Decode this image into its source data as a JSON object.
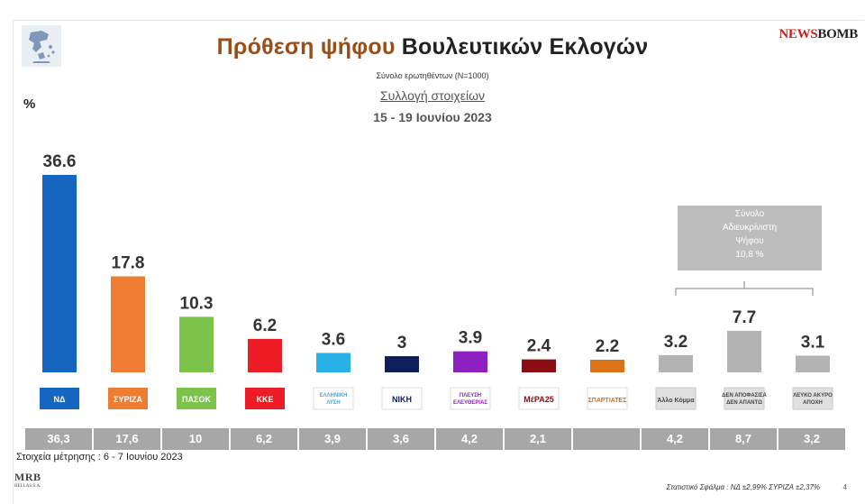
{
  "header": {
    "title_accent": "Πρόθεση ψήφου",
    "title_rest": "Βουλευτικών Εκλογών",
    "brand_left": "NEWS",
    "brand_right": "BOMB",
    "subtitle": "Σύνολο ερωτηθέντων (Ν=1000)",
    "collection_label": "Συλλογή στοιχείων",
    "date_range": "15 - 19 Ιουνίου 2023"
  },
  "chart_data": {
    "type": "bar",
    "ylabel": "%",
    "categories": [
      {
        "logo_text": "ΝΔ",
        "color": "#1665c0"
      },
      {
        "logo_text": "ΣΥΡΙΖΑ",
        "color": "#ef7d31"
      },
      {
        "logo_text": "ΠΑΣΟΚ",
        "color": "#7dc24a"
      },
      {
        "logo_text": "ΚΚΕ",
        "color": "#ee1c24"
      },
      {
        "logo_text": "ΕΛΛΗΝΙΚΗ ΛΥΣΗ",
        "color": "#29b1e6"
      },
      {
        "logo_text": "ΝΙΚΗ",
        "color": "#0e1f5c"
      },
      {
        "logo_text": "ΠΛΕΥΣΗ ΕΛΕΥΘΕΡΙΑΣ",
        "color": "#8b1fbf"
      },
      {
        "logo_text": "ΜέΡΑ25",
        "color": "#8b0d12"
      },
      {
        "logo_text": "ΣΠΑΡΤΙΑΤΕΣ",
        "color": "#dc7319"
      },
      {
        "logo_text": "Άλλο Κόμμα",
        "color": "#b3b3b3"
      },
      {
        "logo_text": "ΔΕΝ ΑΠΟΦΑΣΙΣΑ ΔΕΝ ΑΠΑΝΤΩ",
        "color": "#b3b3b3"
      },
      {
        "logo_text": "ΛΕΥΚΟ ΑΚΥΡΟ ΑΠΟΧΗ",
        "color": "#b3b3b3"
      }
    ],
    "values": [
      36.6,
      17.8,
      10.3,
      6.2,
      3.6,
      3,
      3.9,
      2.4,
      2.2,
      3.2,
      7.7,
      3.1
    ],
    "value_labels": [
      "36.6",
      "17.8",
      "10.3",
      "6.2",
      "3.6",
      "3",
      "3.9",
      "2.4",
      "2.2",
      "3.2",
      "7.7",
      "3.1"
    ],
    "previous_values": [
      "36,3",
      "17,6",
      "10",
      "6,2",
      "3,9",
      "3,6",
      "4,2",
      "2,1",
      "",
      "4,2",
      "8,7",
      "3,2"
    ],
    "previous_label": "Στοιχεία μέτρησης : 6 - 7 Ιουνίου 2023",
    "undecided_box": [
      "Σύνολο",
      "Αδιευκρίνιστη",
      "Ψήφου",
      "10,8 %"
    ],
    "ylim": [
      0,
      40
    ]
  },
  "footer": {
    "mrb_logo": "MRB",
    "mrb_sub": "HELLAS S.A.",
    "footnote": "Στατιστικό Σφάλμα : ΝΔ ±2,99% ΣΥΡΙΖΑ ±2,37%",
    "page_number": "4"
  }
}
